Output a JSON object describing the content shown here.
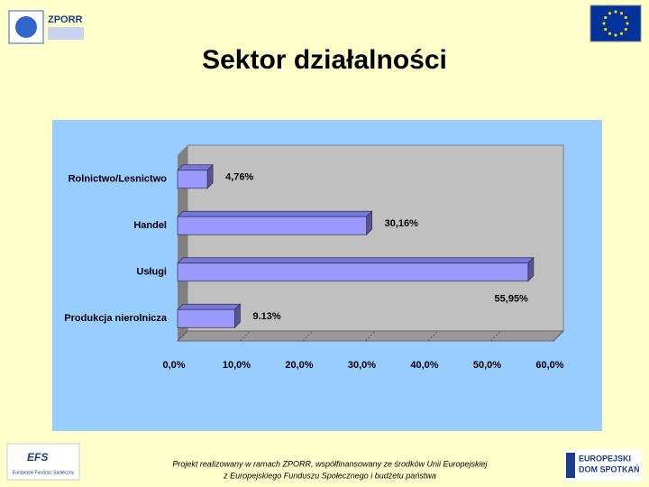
{
  "header": {
    "logo_left": "ZPORR"
  },
  "chart_data": {
    "type": "bar",
    "orientation": "horizontal",
    "title": "Sektor działalności",
    "categories": [
      "Rolnictwo/Lesnictwo",
      "Handel",
      "Usługi",
      "Produkcja nierolnicza"
    ],
    "values": [
      4.76,
      30.16,
      55.95,
      9.13
    ],
    "value_labels": [
      "4,76%",
      "30,16%",
      "55,95%",
      "9.13%"
    ],
    "color": "#9999ff",
    "xlim": [
      0,
      60
    ],
    "xticks": [
      {
        "value": 0,
        "label": "0,0%"
      },
      {
        "value": 10,
        "label": "10,0%"
      },
      {
        "value": 20,
        "label": "20,0%"
      },
      {
        "value": 30,
        "label": "30,0%"
      },
      {
        "value": 40,
        "label": "40,0%"
      },
      {
        "value": 50,
        "label": "50,0%"
      },
      {
        "value": 60,
        "label": "60,0%"
      }
    ]
  },
  "footer": {
    "line1": "Projekt realizowany w ramach ZPORR, współfinansowany ze środków Unii Europejskiej",
    "line2": "z Europejskiego Funduszu Społecznego i budżetu państwa",
    "logo_left": "EFS",
    "logo_left_caption": "Europejski Fundusz Społeczny",
    "logo_right_1": "EUROPEJSKI",
    "logo_right_2": "DOM SPOTKAŃ"
  }
}
